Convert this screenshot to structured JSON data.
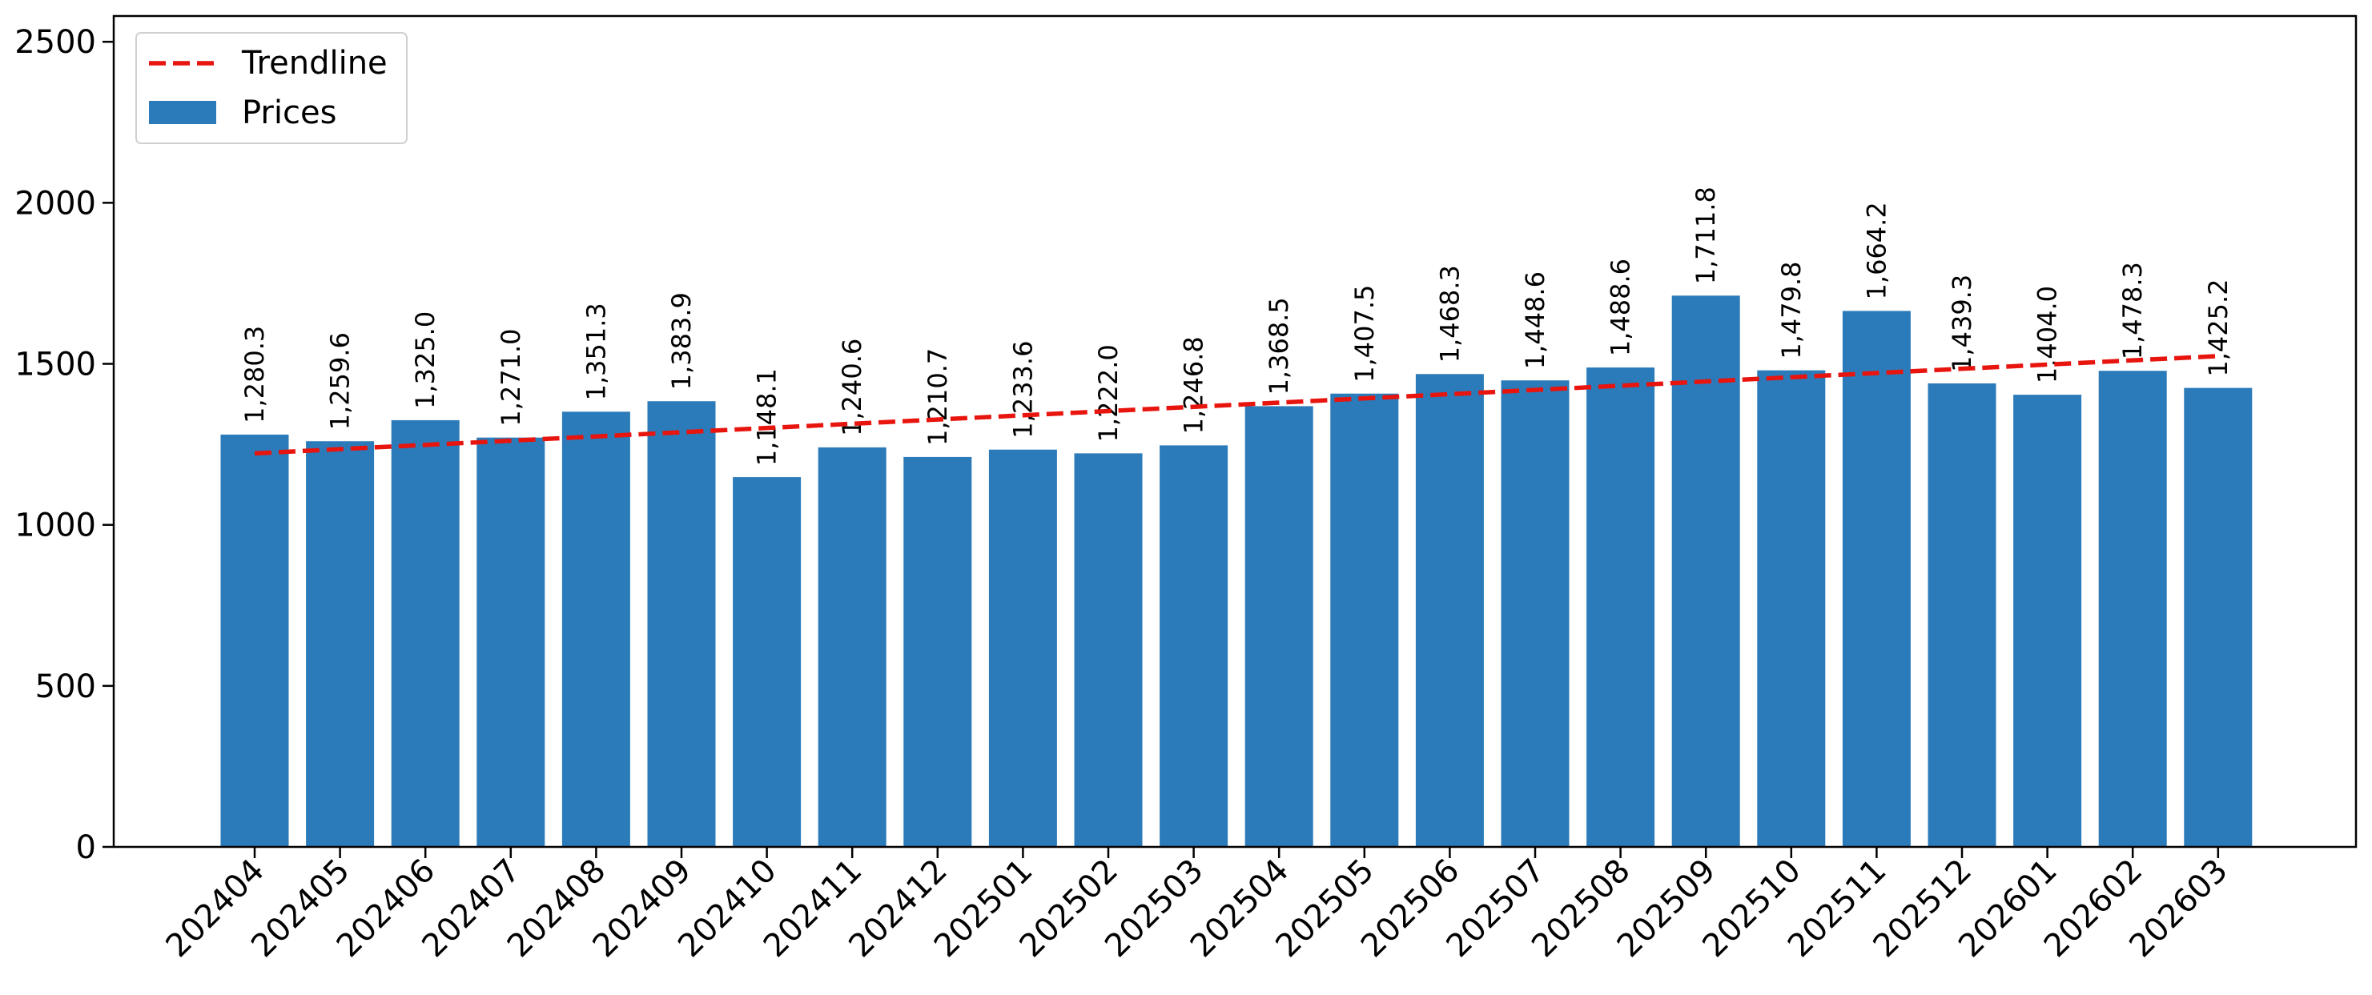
{
  "chart_data": {
    "type": "bar",
    "categories": [
      "202404",
      "202405",
      "202406",
      "202407",
      "202408",
      "202409",
      "202410",
      "202411",
      "202412",
      "202501",
      "202502",
      "202503",
      "202504",
      "202505",
      "202506",
      "202507",
      "202508",
      "202509",
      "202510",
      "202511",
      "202512",
      "202601",
      "202602",
      "202603"
    ],
    "series": [
      {
        "name": "Prices",
        "values": [
          1280.3,
          1259.6,
          1325.0,
          1271.0,
          1351.3,
          1383.9,
          1148.1,
          1240.6,
          1210.7,
          1233.6,
          1222.0,
          1246.8,
          1368.5,
          1407.5,
          1468.3,
          1448.6,
          1488.6,
          1711.8,
          1479.8,
          1664.2,
          1439.3,
          1404.0,
          1478.3,
          1425.2
        ],
        "labels": [
          "1,280.3",
          "1,259.6",
          "1,325.0",
          "1,271.0",
          "1,351.3",
          "1,383.9",
          "1,148.1",
          "1,240.6",
          "1,210.7",
          "1,233.6",
          "1,222.0",
          "1,246.8",
          "1,368.5",
          "1,407.5",
          "1,468.3",
          "1,448.6",
          "1,488.6",
          "1,711.8",
          "1,479.8",
          "1,664.2",
          "1,439.3",
          "1,404.0",
          "1,478.3",
          "1,425.2"
        ]
      },
      {
        "name": "Trendline",
        "type": "line",
        "style": "dashed",
        "start": 1222,
        "end": 1524
      }
    ],
    "ylim": [
      0,
      2580
    ],
    "yticks": [
      0,
      500,
      1000,
      1500,
      2000,
      2500
    ],
    "xlabel": "",
    "ylabel": "",
    "title": "",
    "legend": "top-left",
    "grid": false,
    "colors": {
      "bar": "#2b7bba",
      "trend": "#e8140e"
    }
  }
}
